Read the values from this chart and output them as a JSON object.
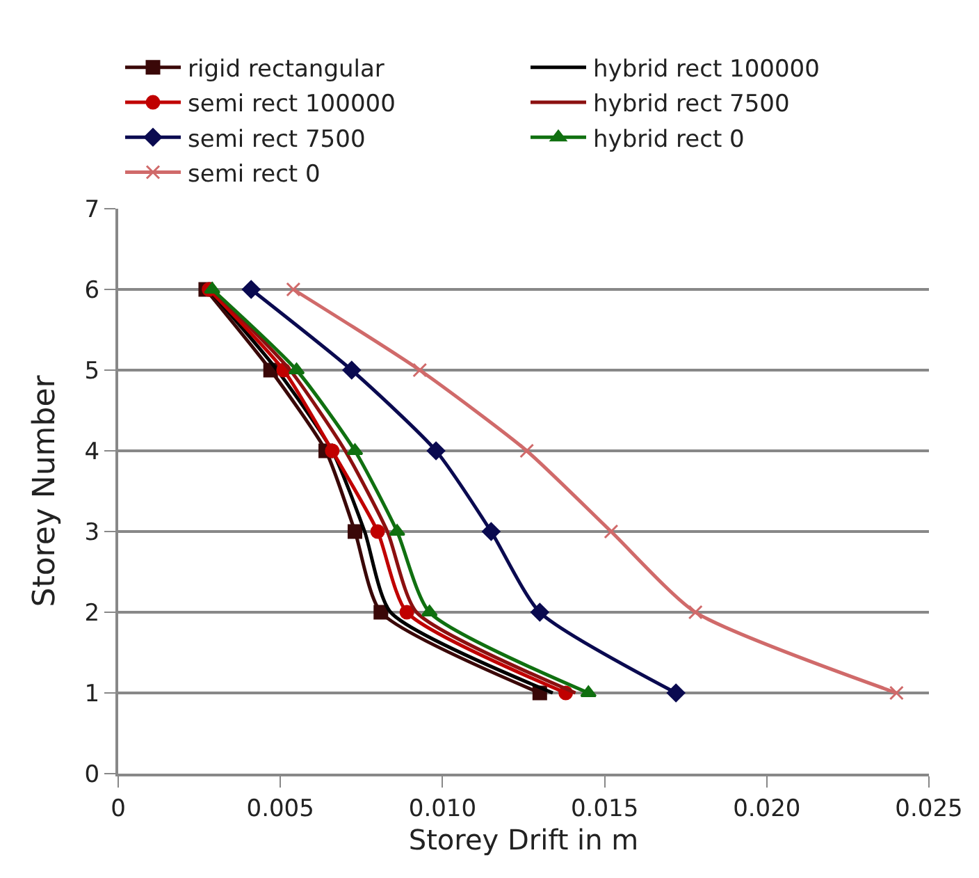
{
  "chart_data": {
    "type": "line",
    "xlabel": "Storey Drift in m",
    "ylabel": "Storey Number",
    "xlim": [
      0,
      0.025
    ],
    "xticks": [
      0,
      0.005,
      {
        "value": 0.01,
        "label": "0.010"
      },
      0.015,
      {
        "value": 0.02,
        "label": "0.020"
      },
      0.025
    ],
    "ylim": [
      0,
      7
    ],
    "yticks": [
      0,
      1,
      2,
      3,
      4,
      5,
      6,
      7
    ],
    "grid": "y",
    "legend": "top",
    "series": [
      {
        "name": "rigid rectangular",
        "color": "#3a0808",
        "marker": "square",
        "x": [
          0.013,
          0.0081,
          0.0073,
          0.0064,
          0.0047,
          0.0027
        ],
        "values": [
          1,
          2,
          3,
          4,
          5,
          6
        ]
      },
      {
        "name": "hybrid rect 100000",
        "color": "#000000",
        "marker": "none",
        "x": [
          0.0134,
          0.0084,
          0.0076,
          0.0066,
          0.0049,
          0.0028
        ],
        "values": [
          1,
          2,
          3,
          4,
          5,
          6
        ]
      },
      {
        "name": "semi rect 100000",
        "color": "#c00000",
        "marker": "circle",
        "x": [
          0.0138,
          0.0089,
          0.008,
          0.0066,
          0.0051,
          0.0028
        ],
        "values": [
          1,
          2,
          3,
          4,
          5,
          6
        ]
      },
      {
        "name": "hybrid rect 7500",
        "color": "#8b1010",
        "marker": "none",
        "x": [
          0.0141,
          0.0092,
          0.0083,
          0.007,
          0.0053,
          0.0029
        ],
        "values": [
          1,
          2,
          3,
          4,
          5,
          6
        ]
      },
      {
        "name": "semi rect 7500",
        "color": "#0a0a50",
        "marker": "diamond",
        "x": [
          0.0172,
          0.013,
          0.0115,
          0.0098,
          0.0072,
          0.0041
        ],
        "values": [
          1,
          2,
          3,
          4,
          5,
          6
        ]
      },
      {
        "name": "hybrid rect 0",
        "color": "#107010",
        "marker": "triangle",
        "x": [
          0.0145,
          0.0096,
          0.0086,
          0.0073,
          0.0055,
          0.0029
        ],
        "values": [
          1,
          2,
          3,
          4,
          5,
          6
        ]
      },
      {
        "name": "semi rect 0",
        "color": "#d06a6a",
        "marker": "cross",
        "x": [
          0.024,
          0.0178,
          0.0152,
          0.0126,
          0.0093,
          0.0054
        ],
        "values": [
          1,
          2,
          3,
          4,
          5,
          6
        ]
      }
    ]
  }
}
